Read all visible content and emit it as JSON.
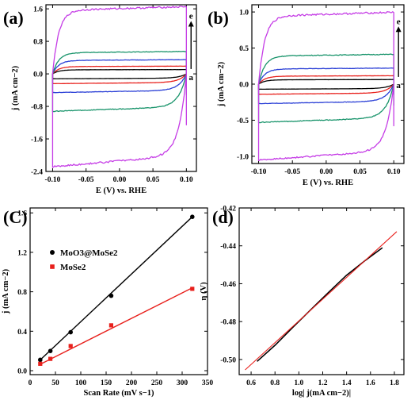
{
  "chart_data": [
    {
      "id": "a",
      "type": "line",
      "panel_label": "(a)",
      "xlabel": "E (V) vs. RHE",
      "ylabel": "j (mA cm−2)",
      "xlim": [
        -0.11,
        0.115
      ],
      "ylim": [
        -2.4,
        1.7
      ],
      "xticks": [
        -0.1,
        -0.05,
        0.0,
        0.05,
        0.1
      ],
      "xtick_labels": [
        "-0.10",
        "-0.05",
        "0.00",
        "0.05",
        "0.10"
      ],
      "yticks": [
        -2.4,
        -1.6,
        -0.8,
        0.0,
        0.8,
        1.6
      ],
      "ytick_labels": [
        "-2.4",
        "-1.6",
        "-0.8",
        "0.0",
        "0.8",
        "1.6"
      ],
      "arrow_label_top": "e",
      "arrow_label_bottom": "a",
      "arrow_x": 0.107,
      "arrow_y": [
        0.12,
        1.3
      ],
      "series": [
        {
          "color": "#000000",
          "anodic": 0.1,
          "cathodic": -0.12
        },
        {
          "color": "#e8201c",
          "anodic": 0.18,
          "cathodic": -0.24
        },
        {
          "color": "#2a3fd6",
          "anodic": 0.33,
          "cathodic": -0.46
        },
        {
          "color": "#17936a",
          "anodic": 0.52,
          "cathodic": -0.92
        },
        {
          "color": "#c53ce6",
          "anodic": 1.56,
          "cathodic": -2.28
        }
      ]
    },
    {
      "id": "b",
      "type": "line",
      "panel_label": "(b)",
      "xlabel": "E (V) vs. RHE",
      "ylabel": "j (mA cm−2)",
      "xlim": [
        -0.11,
        0.115
      ],
      "ylim": [
        -1.1,
        1.1
      ],
      "xticks": [
        -0.1,
        -0.05,
        0.0,
        0.05,
        0.1
      ],
      "xtick_labels": [
        "-0.10",
        "-0.05",
        "0.00",
        "0.05",
        "0.10"
      ],
      "yticks": [
        -1.0,
        -0.5,
        0.0,
        0.5,
        1.0
      ],
      "ytick_labels": [
        "-1.0",
        "-0.5",
        "0.0",
        "0.5",
        "1.0"
      ],
      "arrow_label_top": "e",
      "arrow_label_bottom": "a",
      "arrow_x": 0.107,
      "arrow_y": [
        0.1,
        0.8
      ],
      "series": [
        {
          "color": "#000000",
          "anodic": 0.06,
          "cathodic": -0.07
        },
        {
          "color": "#e8201c",
          "anodic": 0.11,
          "cathodic": -0.14
        },
        {
          "color": "#2a3fd6",
          "anodic": 0.21,
          "cathodic": -0.27
        },
        {
          "color": "#17936a",
          "anodic": 0.39,
          "cathodic": -0.53
        },
        {
          "color": "#c53ce6",
          "anodic": 0.94,
          "cathodic": -1.05
        }
      ]
    },
    {
      "id": "c",
      "type": "scatter",
      "panel_label": "(C)",
      "xlabel": "Scan Rate (mV s−1)",
      "ylabel": "j (mA cm−2)",
      "xlim": [
        0,
        350
      ],
      "ylim": [
        -0.04,
        1.65
      ],
      "xticks": [
        0,
        50,
        100,
        150,
        200,
        250,
        300,
        350
      ],
      "xtick_labels": [
        "0",
        "50",
        "100",
        "150",
        "200",
        "250",
        "300",
        "350"
      ],
      "yticks": [
        0.0,
        0.4,
        0.8,
        1.2,
        1.6
      ],
      "ytick_labels": [
        "0.0",
        "0.4",
        "0.8",
        "1.2",
        "1.6"
      ],
      "series": [
        {
          "name": "MoO3@MoSe2",
          "color": "#000000",
          "marker": "circle",
          "x": [
            20,
            40,
            80,
            160,
            320
          ],
          "y": [
            0.11,
            0.2,
            0.39,
            0.76,
            1.56
          ],
          "fit": [
            [
              18,
              0.1
            ],
            [
              320,
              1.56
            ]
          ]
        },
        {
          "name": "MoSe2",
          "color": "#e8201c",
          "marker": "square",
          "x": [
            20,
            40,
            80,
            160,
            320
          ],
          "y": [
            0.07,
            0.12,
            0.25,
            0.46,
            0.83
          ],
          "fit": [
            [
              18,
              0.06
            ],
            [
              320,
              0.84
            ]
          ]
        }
      ]
    },
    {
      "id": "d",
      "type": "line",
      "panel_label": "(d)",
      "xlabel": "log| j(mA cm−2)|",
      "ylabel": "η (V)",
      "xlim": [
        0.5,
        1.88
      ],
      "ylim": [
        -0.508,
        -0.42
      ],
      "xticks": [
        0.6,
        0.8,
        1.0,
        1.2,
        1.4,
        1.6,
        1.8
      ],
      "xtick_labels": [
        "0.6",
        "0.8",
        "1.0",
        "1.2",
        "1.4",
        "1.6",
        "1.8"
      ],
      "yticks": [
        -0.5,
        -0.48,
        -0.46,
        -0.44,
        -0.42
      ],
      "ytick_labels": [
        "-0.50",
        "-0.48",
        "-0.46",
        "-0.44",
        "-0.42"
      ],
      "series": [
        {
          "color": "#000000",
          "kind": "data",
          "x": [
            0.65,
            0.8,
            0.95,
            1.1,
            1.25,
            1.4,
            1.55,
            1.7
          ],
          "y": [
            -0.501,
            -0.4925,
            -0.483,
            -0.4737,
            -0.4645,
            -0.4555,
            -0.448,
            -0.441
          ]
        },
        {
          "color": "#e8201c",
          "kind": "fit",
          "x": [
            0.55,
            1.82
          ],
          "y": [
            -0.5055,
            -0.4325
          ]
        }
      ]
    }
  ]
}
